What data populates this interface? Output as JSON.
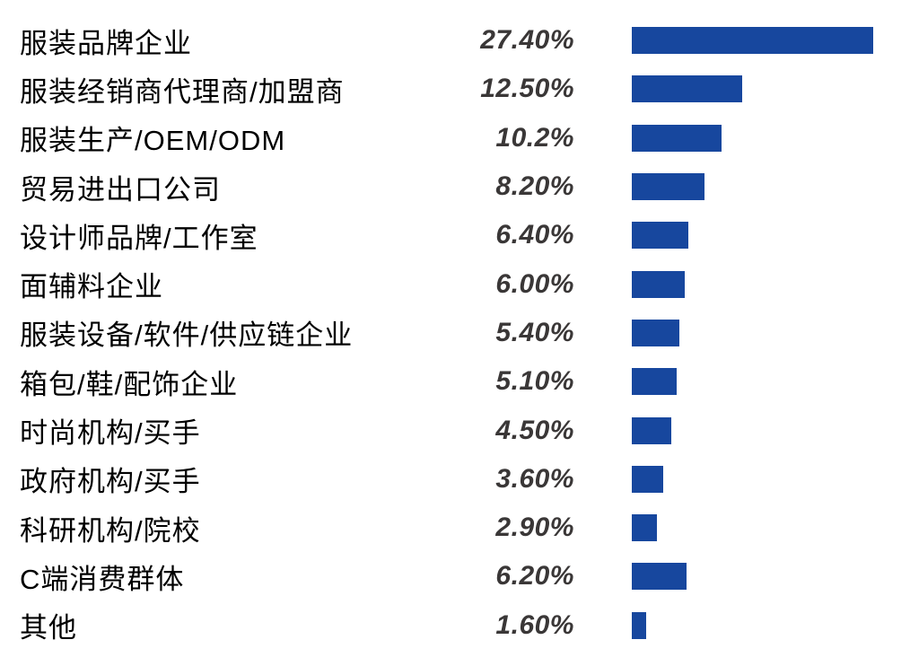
{
  "chart_data": {
    "type": "bar",
    "orientation": "horizontal",
    "title": "",
    "xlabel": "",
    "ylabel": "",
    "grid": false,
    "legend": "none",
    "xlim": [
      0,
      27.4
    ],
    "categories": [
      "服装品牌企业",
      "服装经销商代理商/加盟商",
      "服装生产/OEM/ODM",
      "贸易进出口公司",
      "设计师品牌/工作室",
      "面辅料企业",
      "服装设备/软件/供应链企业",
      "箱包/鞋/配饰企业",
      "时尚机构/买手",
      "政府机构/买手",
      "科研机构/院校",
      "C端消费群体",
      "其他"
    ],
    "values": [
      27.4,
      12.5,
      10.2,
      8.2,
      6.4,
      6.0,
      5.4,
      5.1,
      4.5,
      3.6,
      2.9,
      6.2,
      1.6
    ],
    "value_labels": [
      "27.40%",
      "12.50%",
      "10.2%",
      "8.20%",
      "6.40%",
      "6.00%",
      "5.40%",
      "5.10%",
      "4.50%",
      "3.60%",
      "2.90%",
      "6.20%",
      "1.60%"
    ],
    "colors": {
      "bar": "#17479E",
      "category_text": "#000000",
      "value_text": "#3A3737",
      "background": "#FFFFFF"
    }
  }
}
